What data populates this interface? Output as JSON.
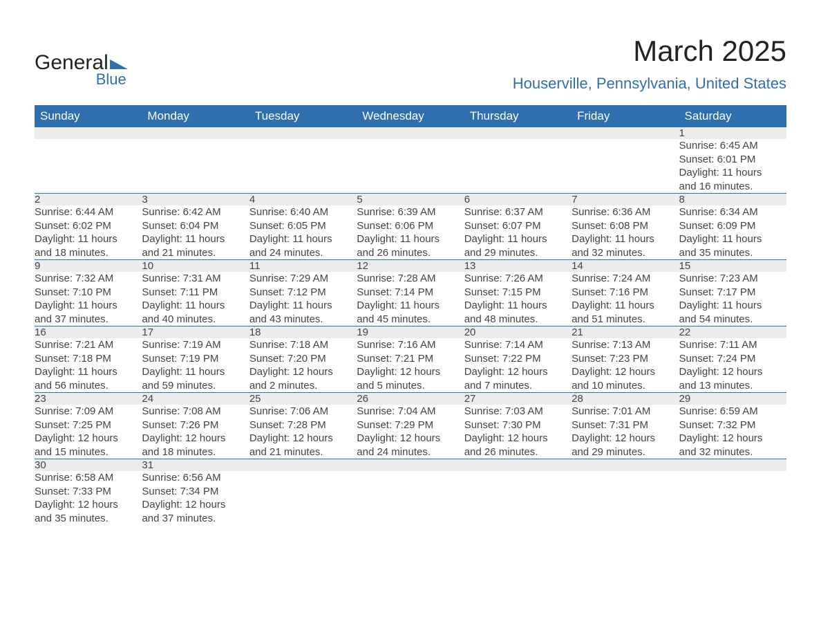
{
  "logo": {
    "line1": "General",
    "line2": "Blue",
    "brand_color": "#2f6fae"
  },
  "header": {
    "month_title": "March 2025",
    "location": "Houserville, Pennsylvania, United States"
  },
  "calendar": {
    "weekday_labels": [
      "Sunday",
      "Monday",
      "Tuesday",
      "Wednesday",
      "Thursday",
      "Friday",
      "Saturday"
    ],
    "header_bg_color": "#2f6fae",
    "header_text_color": "#ffffff",
    "daynum_bg_color": "#ececec",
    "border_color": "#2f6fae",
    "text_color": "#444444",
    "font_size_body": 15,
    "font_size_daynum": 17,
    "weeks": [
      [
        null,
        null,
        null,
        null,
        null,
        null,
        {
          "n": "1",
          "sunrise": "Sunrise: 6:45 AM",
          "sunset": "Sunset: 6:01 PM",
          "day1": "Daylight: 11 hours",
          "day2": "and 16 minutes."
        }
      ],
      [
        {
          "n": "2",
          "sunrise": "Sunrise: 6:44 AM",
          "sunset": "Sunset: 6:02 PM",
          "day1": "Daylight: 11 hours",
          "day2": "and 18 minutes."
        },
        {
          "n": "3",
          "sunrise": "Sunrise: 6:42 AM",
          "sunset": "Sunset: 6:04 PM",
          "day1": "Daylight: 11 hours",
          "day2": "and 21 minutes."
        },
        {
          "n": "4",
          "sunrise": "Sunrise: 6:40 AM",
          "sunset": "Sunset: 6:05 PM",
          "day1": "Daylight: 11 hours",
          "day2": "and 24 minutes."
        },
        {
          "n": "5",
          "sunrise": "Sunrise: 6:39 AM",
          "sunset": "Sunset: 6:06 PM",
          "day1": "Daylight: 11 hours",
          "day2": "and 26 minutes."
        },
        {
          "n": "6",
          "sunrise": "Sunrise: 6:37 AM",
          "sunset": "Sunset: 6:07 PM",
          "day1": "Daylight: 11 hours",
          "day2": "and 29 minutes."
        },
        {
          "n": "7",
          "sunrise": "Sunrise: 6:36 AM",
          "sunset": "Sunset: 6:08 PM",
          "day1": "Daylight: 11 hours",
          "day2": "and 32 minutes."
        },
        {
          "n": "8",
          "sunrise": "Sunrise: 6:34 AM",
          "sunset": "Sunset: 6:09 PM",
          "day1": "Daylight: 11 hours",
          "day2": "and 35 minutes."
        }
      ],
      [
        {
          "n": "9",
          "sunrise": "Sunrise: 7:32 AM",
          "sunset": "Sunset: 7:10 PM",
          "day1": "Daylight: 11 hours",
          "day2": "and 37 minutes."
        },
        {
          "n": "10",
          "sunrise": "Sunrise: 7:31 AM",
          "sunset": "Sunset: 7:11 PM",
          "day1": "Daylight: 11 hours",
          "day2": "and 40 minutes."
        },
        {
          "n": "11",
          "sunrise": "Sunrise: 7:29 AM",
          "sunset": "Sunset: 7:12 PM",
          "day1": "Daylight: 11 hours",
          "day2": "and 43 minutes."
        },
        {
          "n": "12",
          "sunrise": "Sunrise: 7:28 AM",
          "sunset": "Sunset: 7:14 PM",
          "day1": "Daylight: 11 hours",
          "day2": "and 45 minutes."
        },
        {
          "n": "13",
          "sunrise": "Sunrise: 7:26 AM",
          "sunset": "Sunset: 7:15 PM",
          "day1": "Daylight: 11 hours",
          "day2": "and 48 minutes."
        },
        {
          "n": "14",
          "sunrise": "Sunrise: 7:24 AM",
          "sunset": "Sunset: 7:16 PM",
          "day1": "Daylight: 11 hours",
          "day2": "and 51 minutes."
        },
        {
          "n": "15",
          "sunrise": "Sunrise: 7:23 AM",
          "sunset": "Sunset: 7:17 PM",
          "day1": "Daylight: 11 hours",
          "day2": "and 54 minutes."
        }
      ],
      [
        {
          "n": "16",
          "sunrise": "Sunrise: 7:21 AM",
          "sunset": "Sunset: 7:18 PM",
          "day1": "Daylight: 11 hours",
          "day2": "and 56 minutes."
        },
        {
          "n": "17",
          "sunrise": "Sunrise: 7:19 AM",
          "sunset": "Sunset: 7:19 PM",
          "day1": "Daylight: 11 hours",
          "day2": "and 59 minutes."
        },
        {
          "n": "18",
          "sunrise": "Sunrise: 7:18 AM",
          "sunset": "Sunset: 7:20 PM",
          "day1": "Daylight: 12 hours",
          "day2": "and 2 minutes."
        },
        {
          "n": "19",
          "sunrise": "Sunrise: 7:16 AM",
          "sunset": "Sunset: 7:21 PM",
          "day1": "Daylight: 12 hours",
          "day2": "and 5 minutes."
        },
        {
          "n": "20",
          "sunrise": "Sunrise: 7:14 AM",
          "sunset": "Sunset: 7:22 PM",
          "day1": "Daylight: 12 hours",
          "day2": "and 7 minutes."
        },
        {
          "n": "21",
          "sunrise": "Sunrise: 7:13 AM",
          "sunset": "Sunset: 7:23 PM",
          "day1": "Daylight: 12 hours",
          "day2": "and 10 minutes."
        },
        {
          "n": "22",
          "sunrise": "Sunrise: 7:11 AM",
          "sunset": "Sunset: 7:24 PM",
          "day1": "Daylight: 12 hours",
          "day2": "and 13 minutes."
        }
      ],
      [
        {
          "n": "23",
          "sunrise": "Sunrise: 7:09 AM",
          "sunset": "Sunset: 7:25 PM",
          "day1": "Daylight: 12 hours",
          "day2": "and 15 minutes."
        },
        {
          "n": "24",
          "sunrise": "Sunrise: 7:08 AM",
          "sunset": "Sunset: 7:26 PM",
          "day1": "Daylight: 12 hours",
          "day2": "and 18 minutes."
        },
        {
          "n": "25",
          "sunrise": "Sunrise: 7:06 AM",
          "sunset": "Sunset: 7:28 PM",
          "day1": "Daylight: 12 hours",
          "day2": "and 21 minutes."
        },
        {
          "n": "26",
          "sunrise": "Sunrise: 7:04 AM",
          "sunset": "Sunset: 7:29 PM",
          "day1": "Daylight: 12 hours",
          "day2": "and 24 minutes."
        },
        {
          "n": "27",
          "sunrise": "Sunrise: 7:03 AM",
          "sunset": "Sunset: 7:30 PM",
          "day1": "Daylight: 12 hours",
          "day2": "and 26 minutes."
        },
        {
          "n": "28",
          "sunrise": "Sunrise: 7:01 AM",
          "sunset": "Sunset: 7:31 PM",
          "day1": "Daylight: 12 hours",
          "day2": "and 29 minutes."
        },
        {
          "n": "29",
          "sunrise": "Sunrise: 6:59 AM",
          "sunset": "Sunset: 7:32 PM",
          "day1": "Daylight: 12 hours",
          "day2": "and 32 minutes."
        }
      ],
      [
        {
          "n": "30",
          "sunrise": "Sunrise: 6:58 AM",
          "sunset": "Sunset: 7:33 PM",
          "day1": "Daylight: 12 hours",
          "day2": "and 35 minutes."
        },
        {
          "n": "31",
          "sunrise": "Sunrise: 6:56 AM",
          "sunset": "Sunset: 7:34 PM",
          "day1": "Daylight: 12 hours",
          "day2": "and 37 minutes."
        },
        null,
        null,
        null,
        null,
        null
      ]
    ]
  }
}
